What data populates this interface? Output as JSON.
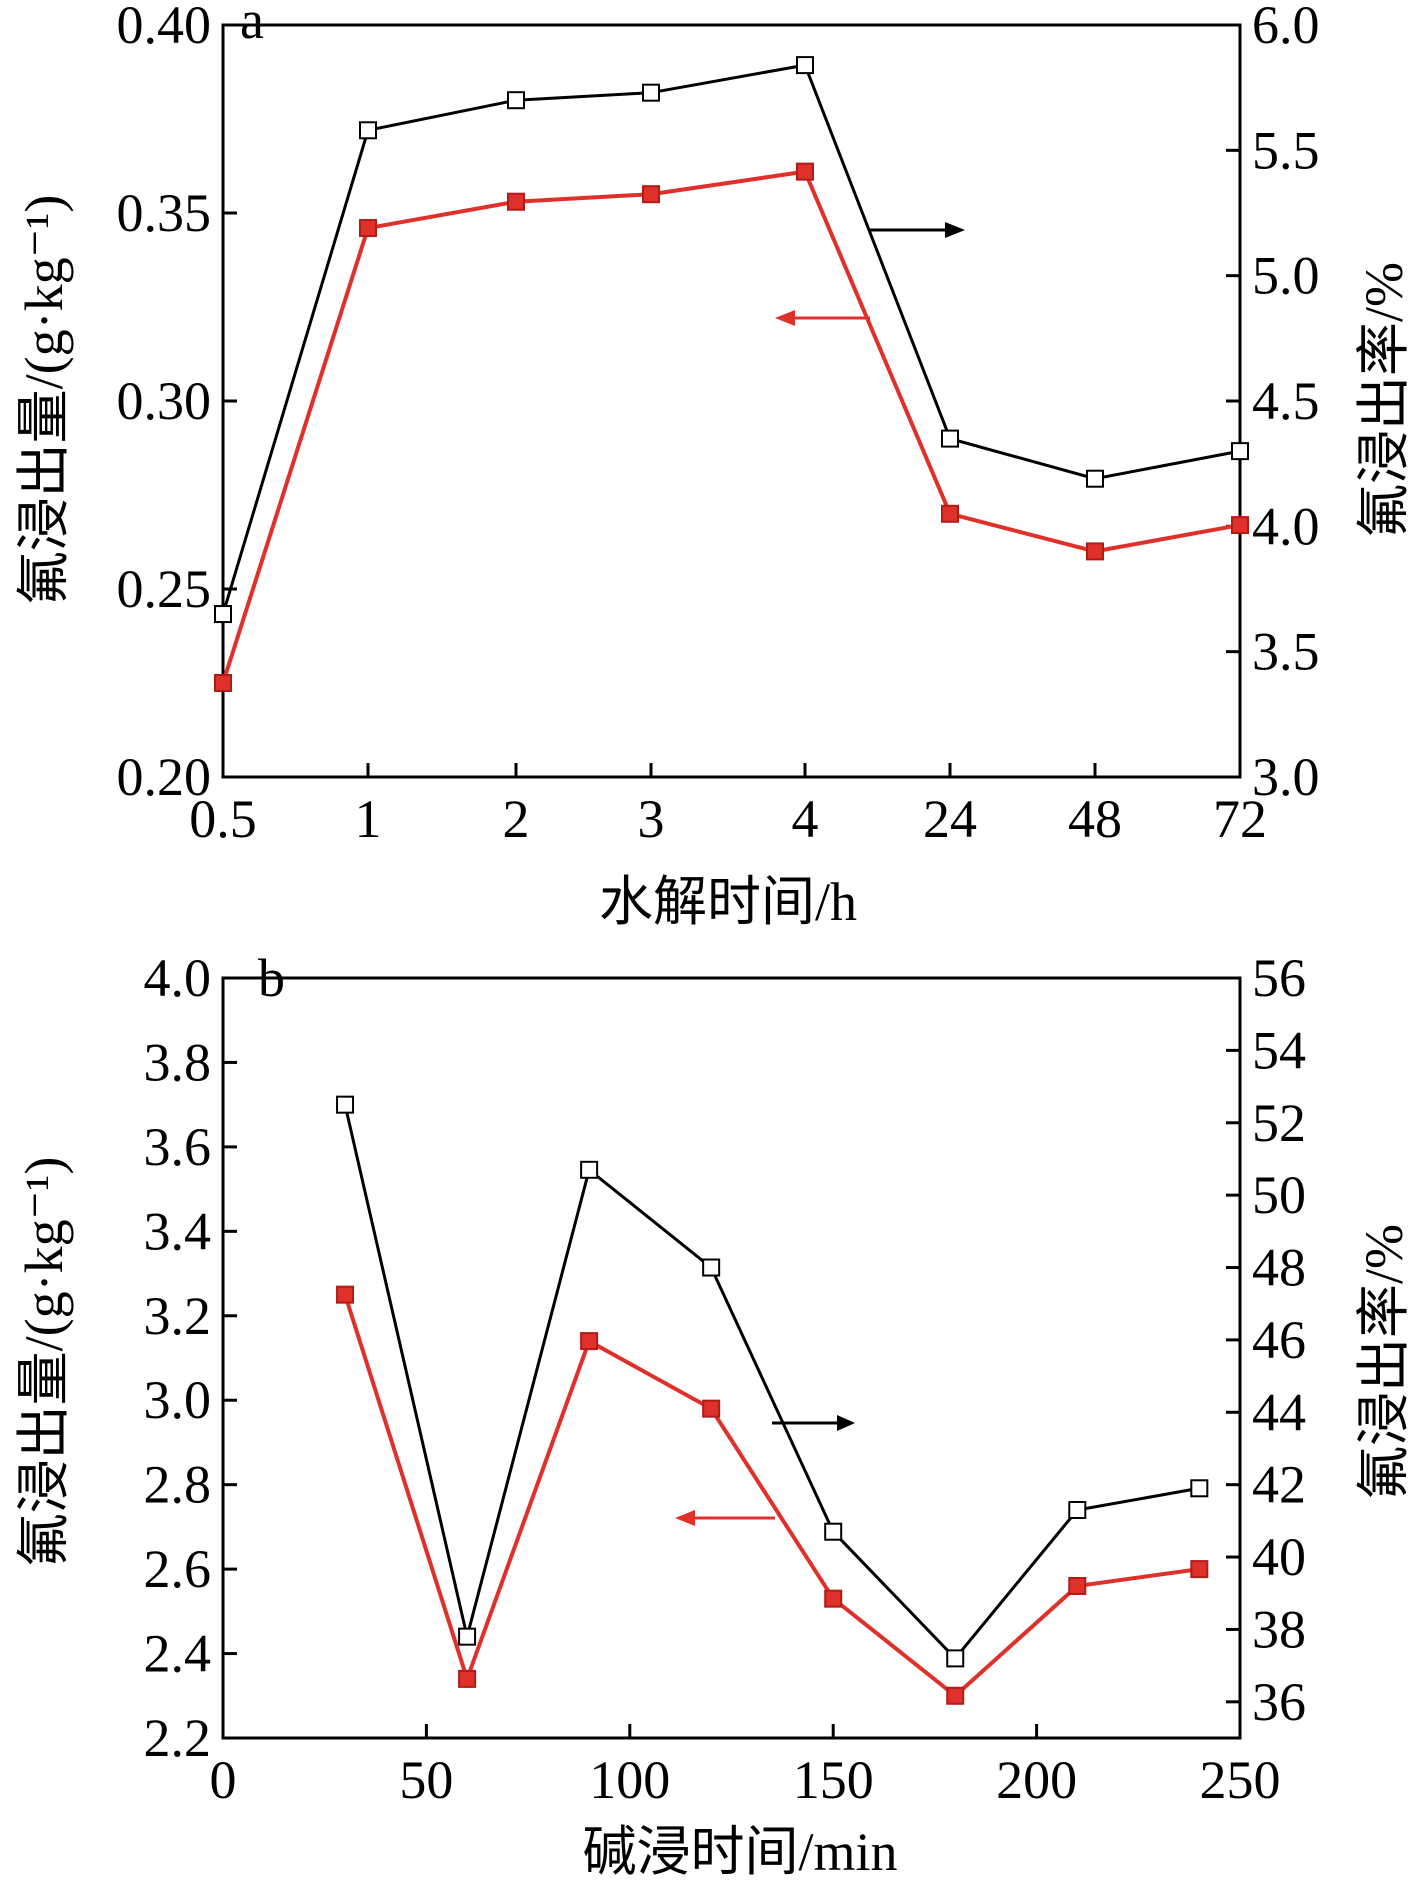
{
  "chart_data": [
    {
      "type": "line",
      "panel_label": "a",
      "x_scale": "categorical",
      "categories": [
        "0.5",
        "1",
        "2",
        "3",
        "4",
        "24",
        "48",
        "72"
      ],
      "xlabel": "水解时间/h",
      "ylabel_left": "氟浸出量/(g·kg⁻¹)",
      "ylabel_right": "氟浸出率/%",
      "ylim_left": [
        0.2,
        0.4
      ],
      "yticks_left": [
        "0.20",
        "0.25",
        "0.30",
        "0.35",
        "0.40"
      ],
      "ylim_right": [
        3.0,
        6.0
      ],
      "yticks_right": [
        "3.0",
        "3.5",
        "4.0",
        "4.5",
        "5.0",
        "5.5",
        "6.0"
      ],
      "series": [
        {
          "axis": "right",
          "color": "#000000",
          "marker": "open-square",
          "values": [
            3.65,
            5.58,
            5.7,
            5.73,
            5.84,
            4.35,
            4.19,
            4.3
          ]
        },
        {
          "axis": "left",
          "color": "#e0302a",
          "marker": "filled-square",
          "values": [
            0.225,
            0.346,
            0.353,
            0.355,
            0.361,
            0.27,
            0.26,
            0.267
          ]
        }
      ],
      "arrows": [
        {
          "direction": "right",
          "color": "#000000"
        },
        {
          "direction": "left",
          "color": "#e0302a"
        }
      ]
    },
    {
      "type": "line",
      "panel_label": "b",
      "x_scale": "linear",
      "xlabel": "碱浸时间/min",
      "xlim": [
        0,
        250
      ],
      "xticks": [
        "0",
        "50",
        "100",
        "150",
        "200",
        "250"
      ],
      "ylabel_left": "氟浸出量/(g·kg⁻¹)",
      "ylabel_right": "氟浸出率/%",
      "ylim_left": [
        2.2,
        4.0
      ],
      "yticks_left": [
        "2.2",
        "2.4",
        "2.6",
        "2.8",
        "3.0",
        "3.2",
        "3.4",
        "3.6",
        "3.8",
        "4.0"
      ],
      "ylim_right": [
        35,
        56
      ],
      "yticks_right": [
        "36",
        "38",
        "40",
        "42",
        "44",
        "46",
        "48",
        "50",
        "52",
        "54",
        "56"
      ],
      "series": [
        {
          "axis": "right",
          "color": "#000000",
          "marker": "open-square",
          "x": [
            30,
            60,
            90,
            120,
            150,
            180,
            210,
            240
          ],
          "values": [
            52.5,
            37.8,
            50.7,
            48.0,
            40.7,
            37.2,
            41.3,
            41.9
          ]
        },
        {
          "axis": "left",
          "color": "#e0302a",
          "marker": "filled-square",
          "x": [
            30,
            60,
            90,
            120,
            150,
            180,
            210,
            240
          ],
          "values": [
            3.25,
            2.34,
            3.14,
            2.98,
            2.53,
            2.3,
            2.56,
            2.6
          ]
        }
      ],
      "arrows": [
        {
          "direction": "right",
          "color": "#000000"
        },
        {
          "direction": "left",
          "color": "#e0302a"
        }
      ]
    }
  ]
}
